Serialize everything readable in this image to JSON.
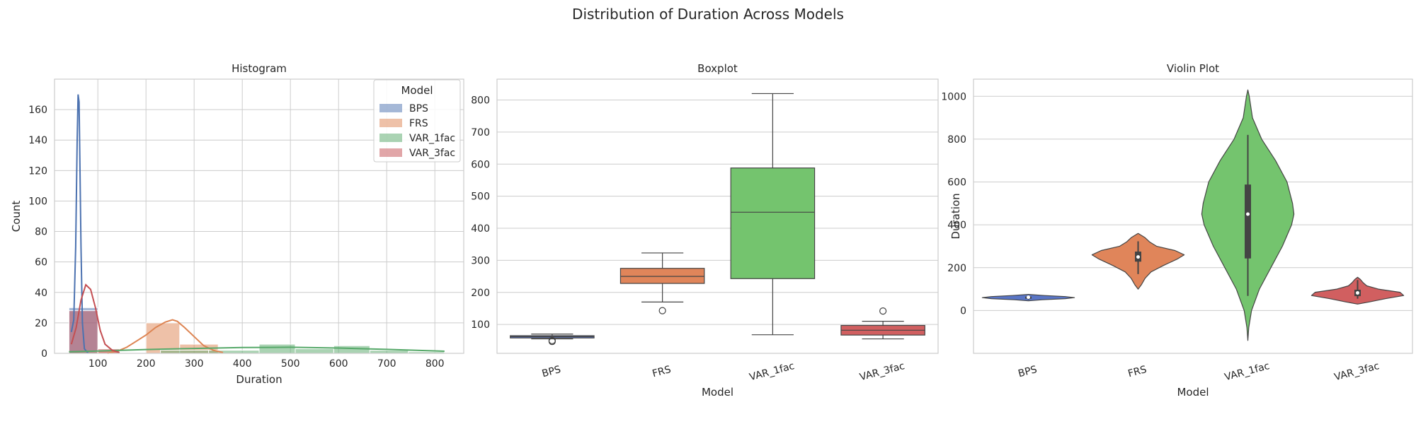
{
  "figure": {
    "title": "Distribution of Duration Across Models"
  },
  "palette": {
    "BPS": "#4c72b0",
    "FRS": "#dd8452",
    "VAR_1fac": "#55a868",
    "VAR_3fac": "#c44e52",
    "box_BPS": "#5975c6",
    "box_FRS": "#e0855a",
    "box_VAR_1fac": "#74c46e",
    "box_VAR_3fac": "#d15f60",
    "grid": "#cccccc",
    "frame": "#cccccc"
  },
  "chart_data": [
    {
      "type": "histogram",
      "title": "Histogram",
      "xlabel": "Duration",
      "ylabel": "Count",
      "xlim": [
        10,
        860
      ],
      "ylim": [
        0,
        180
      ],
      "xticks": [
        100,
        200,
        300,
        400,
        500,
        600,
        700,
        800
      ],
      "yticks": [
        0,
        20,
        40,
        60,
        80,
        100,
        120,
        140,
        160
      ],
      "legend": {
        "title": "Model",
        "placement": "top-right",
        "entries": [
          "BPS",
          "FRS",
          "VAR_1fac",
          "VAR_3fac"
        ]
      },
      "series": [
        {
          "name": "BPS",
          "bins": [
            [
              40,
              100,
              30
            ]
          ],
          "kde": [
            [
              45,
              14
            ],
            [
              50,
              22
            ],
            [
              54,
              70
            ],
            [
              57,
              140
            ],
            [
              59,
              170
            ],
            [
              61,
              165
            ],
            [
              63,
              120
            ],
            [
              65,
              70
            ],
            [
              68,
              20
            ],
            [
              72,
              3
            ],
            [
              80,
              0
            ]
          ]
        },
        {
          "name": "FRS",
          "bins": [
            [
              100,
              145,
              2
            ],
            [
              200,
              270,
              20
            ],
            [
              270,
              350,
              6
            ]
          ],
          "kde": [
            [
              120,
              0
            ],
            [
              145,
              2
            ],
            [
              160,
              4
            ],
            [
              180,
              8
            ],
            [
              200,
              12
            ],
            [
              220,
              17
            ],
            [
              240,
              20.5
            ],
            [
              255,
              22
            ],
            [
              265,
              21
            ],
            [
              280,
              17
            ],
            [
              300,
              11
            ],
            [
              320,
              5
            ],
            [
              340,
              2
            ],
            [
              360,
              0.5
            ]
          ]
        },
        {
          "name": "VAR_1fac",
          "bins": [
            [
              40,
              100,
              1
            ],
            [
              230,
              330,
              2
            ],
            [
              330,
              435,
              2
            ],
            [
              435,
              510,
              6
            ],
            [
              510,
              590,
              3
            ],
            [
              590,
              665,
              5
            ],
            [
              665,
              745,
              2
            ],
            [
              745,
              820,
              1
            ]
          ],
          "kde": [
            [
              40,
              1
            ],
            [
              100,
              1.5
            ],
            [
              200,
              2.5
            ],
            [
              300,
              3.2
            ],
            [
              400,
              3.8
            ],
            [
              500,
              4
            ],
            [
              600,
              3.5
            ],
            [
              700,
              2.6
            ],
            [
              820,
              1.4
            ]
          ]
        },
        {
          "name": "VAR_3fac",
          "bins": [
            [
              40,
              100,
              28
            ],
            [
              100,
              145,
              3
            ]
          ],
          "kde": [
            [
              45,
              6
            ],
            [
              55,
              17
            ],
            [
              65,
              35
            ],
            [
              75,
              45
            ],
            [
              85,
              42
            ],
            [
              95,
              30
            ],
            [
              105,
              15
            ],
            [
              115,
              6
            ],
            [
              130,
              2
            ],
            [
              145,
              0.5
            ]
          ]
        }
      ]
    },
    {
      "type": "box",
      "title": "Boxplot",
      "xlabel": "Model",
      "ylabel": "Duration",
      "ylim": [
        10,
        865
      ],
      "yticks": [
        100,
        200,
        300,
        400,
        500,
        600,
        700,
        800
      ],
      "categories": [
        "BPS",
        "FRS",
        "VAR_1fac",
        "VAR_3fac"
      ],
      "boxes": [
        {
          "name": "BPS",
          "min": 55,
          "q1": 58,
          "median": 62,
          "q3": 65,
          "max": 70,
          "outliers": [
            47,
            50
          ]
        },
        {
          "name": "FRS",
          "min": 170,
          "q1": 228,
          "median": 250,
          "q3": 275,
          "max": 323,
          "outliers": [
            143
          ]
        },
        {
          "name": "VAR_1fac",
          "min": 68,
          "q1": 243,
          "median": 450,
          "q3": 588,
          "max": 820,
          "outliers": []
        },
        {
          "name": "VAR_3fac",
          "min": 55,
          "q1": 67,
          "median": 82,
          "q3": 97,
          "max": 110,
          "outliers": [
            142
          ]
        }
      ]
    },
    {
      "type": "violin",
      "title": "Violin Plot",
      "xlabel": "Model",
      "ylabel": "Duration",
      "ylim": [
        -200,
        1080
      ],
      "yticks": [
        0,
        200,
        400,
        600,
        800,
        1000
      ],
      "categories": [
        "BPS",
        "FRS",
        "VAR_1fac",
        "VAR_3fac"
      ],
      "violins": [
        {
          "name": "BPS",
          "q1": 58,
          "median": 62,
          "q3": 65,
          "min": 50,
          "max": 70,
          "profile": [
            [
              45,
              0
            ],
            [
              50,
              0.3
            ],
            [
              55,
              0.8
            ],
            [
              60,
              1.0
            ],
            [
              65,
              0.8
            ],
            [
              70,
              0.35
            ],
            [
              75,
              0
            ]
          ]
        },
        {
          "name": "FRS",
          "q1": 228,
          "median": 250,
          "q3": 275,
          "min": 170,
          "max": 323,
          "profile": [
            [
              100,
              0
            ],
            [
              120,
              0.07
            ],
            [
              150,
              0.15
            ],
            [
              180,
              0.28
            ],
            [
              210,
              0.55
            ],
            [
              240,
              0.85
            ],
            [
              260,
              1.0
            ],
            [
              280,
              0.8
            ],
            [
              300,
              0.4
            ],
            [
              320,
              0.25
            ],
            [
              340,
              0.15
            ],
            [
              360,
              0
            ]
          ]
        },
        {
          "name": "VAR_1fac",
          "q1": 243,
          "median": 450,
          "q3": 588,
          "min": 68,
          "max": 820,
          "profile": [
            [
              -140,
              0
            ],
            [
              -80,
              0.02
            ],
            [
              0,
              0.08
            ],
            [
              100,
              0.25
            ],
            [
              200,
              0.5
            ],
            [
              300,
              0.75
            ],
            [
              400,
              0.95
            ],
            [
              450,
              1.0
            ],
            [
              500,
              0.97
            ],
            [
              600,
              0.85
            ],
            [
              700,
              0.6
            ],
            [
              800,
              0.3
            ],
            [
              900,
              0.1
            ],
            [
              1000,
              0.03
            ],
            [
              1030,
              0
            ]
          ]
        },
        {
          "name": "VAR_3fac",
          "q1": 67,
          "median": 82,
          "q3": 97,
          "min": 55,
          "max": 142,
          "profile": [
            [
              30,
              0
            ],
            [
              40,
              0.25
            ],
            [
              55,
              0.6
            ],
            [
              70,
              1.0
            ],
            [
              85,
              0.92
            ],
            [
              100,
              0.45
            ],
            [
              115,
              0.2
            ],
            [
              130,
              0.12
            ],
            [
              145,
              0.06
            ],
            [
              155,
              0
            ]
          ]
        }
      ]
    }
  ]
}
